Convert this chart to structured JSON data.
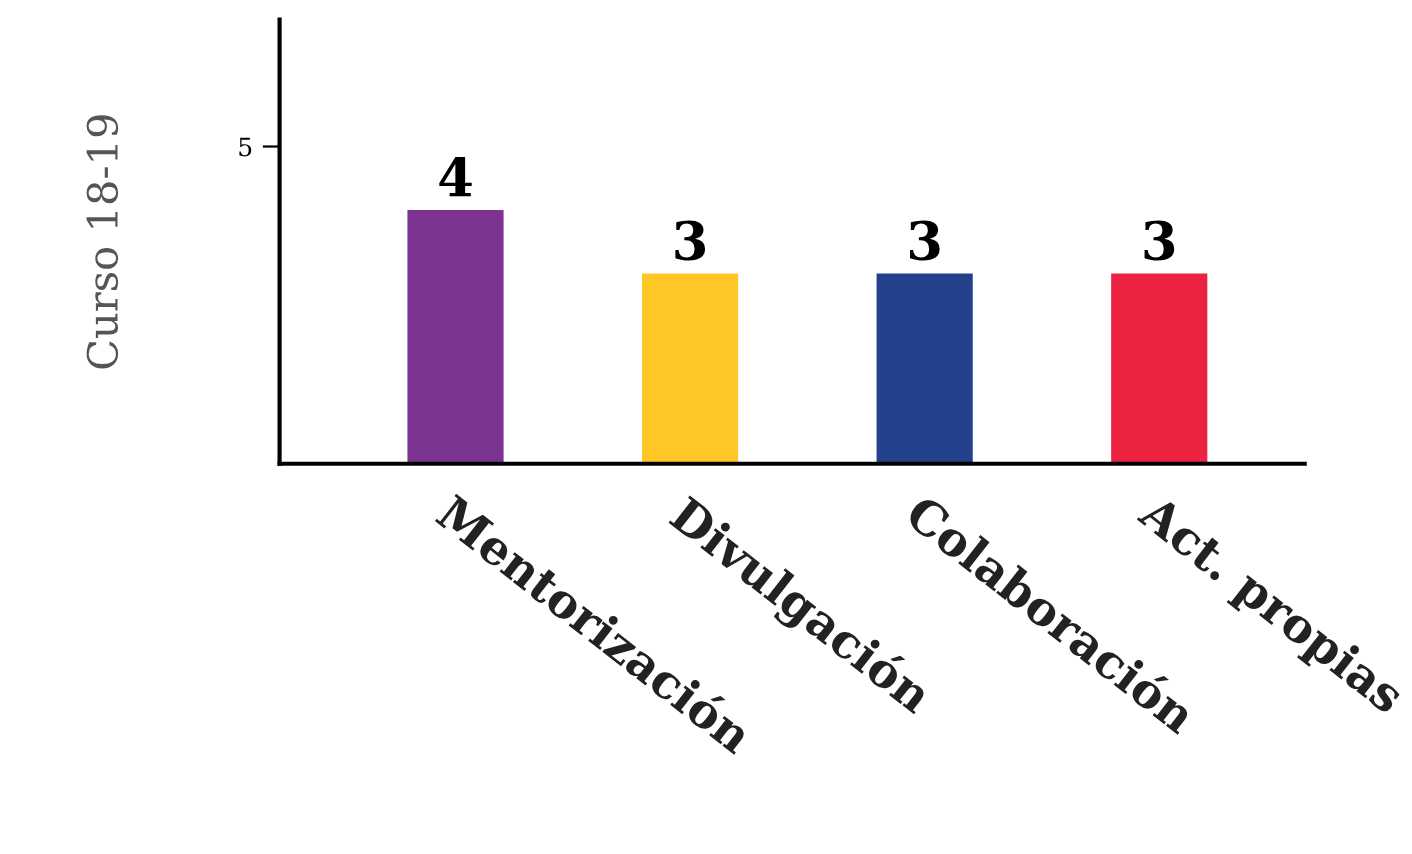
{
  "chart_data": {
    "type": "bar",
    "ylabel": "Curso 18-19",
    "categories": [
      "Mentorización",
      "Divulgación",
      "Colaboración",
      "Act. propias"
    ],
    "values": [
      4,
      3,
      3,
      3
    ],
    "colors": [
      "#7b3590",
      "#ffc726",
      "#22418a",
      "#ec2241"
    ],
    "ylim": [
      0,
      7
    ],
    "yticks": [
      5
    ],
    "data_labels": true,
    "grid": false,
    "legend": false
  }
}
